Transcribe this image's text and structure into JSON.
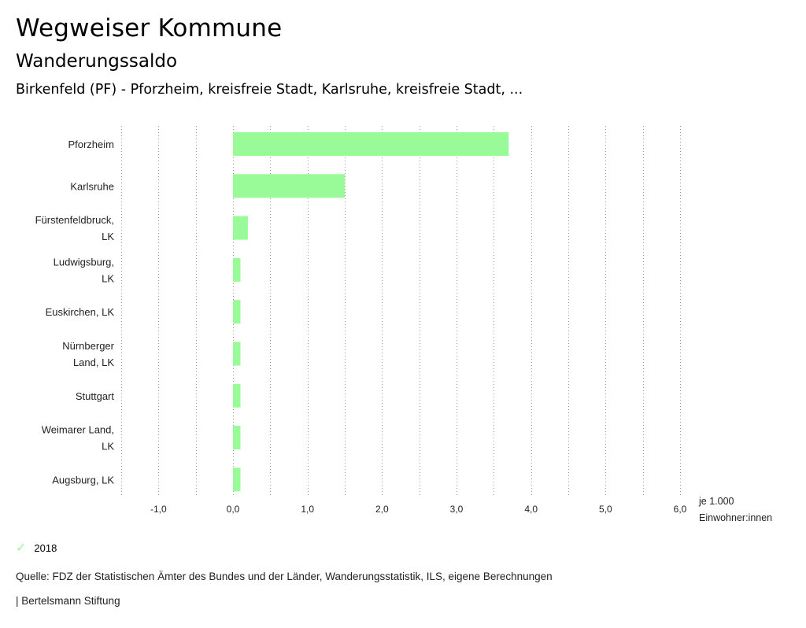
{
  "header": {
    "title": "Wegweiser Kommune",
    "subtitle": "Wanderungssaldo",
    "region": "Birkenfeld (PF) - Pforzheim, kreisfreie Stadt, Karlsruhe, kreisfreie Stadt, ..."
  },
  "colors": {
    "bar": "#98fb98",
    "grid": "#999999"
  },
  "chart_data": {
    "type": "bar",
    "orientation": "horizontal",
    "categories": [
      [
        "Pforzheim"
      ],
      [
        "Karlsruhe"
      ],
      [
        "Fürstenfeldbruck,",
        "LK"
      ],
      [
        "Ludwigsburg,",
        "LK"
      ],
      [
        "Euskirchen, LK"
      ],
      [
        "Nürnberger",
        "Land, LK"
      ],
      [
        "Stuttgart"
      ],
      [
        "Weimarer Land,",
        "LK"
      ],
      [
        "Augsburg, LK"
      ]
    ],
    "series": [
      {
        "name": "2018",
        "values": [
          3.7,
          1.5,
          0.2,
          0.1,
          0.1,
          0.1,
          0.1,
          0.1,
          0.1
        ]
      }
    ],
    "xlim": [
      -1.5,
      6.0
    ],
    "ticks": [
      -1.0,
      0.0,
      1.0,
      2.0,
      3.0,
      4.0,
      5.0,
      6.0
    ],
    "tick_labels": [
      "-1,0",
      "0,0",
      "1,0",
      "2,0",
      "3,0",
      "4,0",
      "5,0",
      "6,0"
    ],
    "unit_label": [
      "je 1.000",
      "Einwohner:innen"
    ],
    "grid": true
  },
  "legend": {
    "label": "2018",
    "icon": "check-icon"
  },
  "footer": {
    "source": "Quelle: FDZ der Statistischen Ämter des Bundes und der Länder, Wanderungsstatistik, ILS, eigene Berechnungen",
    "brand": "| Bertelsmann Stiftung"
  }
}
